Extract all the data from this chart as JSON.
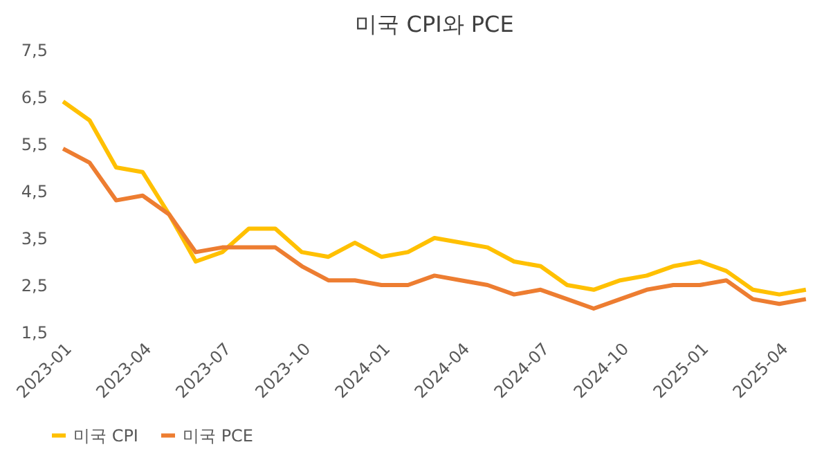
{
  "chart_data": {
    "type": "line",
    "title": "미국 CPI와 PCE",
    "categories": [
      "2023-01",
      null,
      null,
      "2023-04",
      null,
      null,
      "2023-07",
      null,
      null,
      "2023-10",
      null,
      null,
      "2024-01",
      null,
      null,
      "2024-04",
      null,
      null,
      "2024-07",
      null,
      null,
      "2024-10",
      null,
      null,
      "2025-01",
      null,
      null,
      "2025-04",
      null
    ],
    "series": [
      {
        "name": "미국 CPI",
        "color": "#ffc000",
        "values": [
          6.4,
          6.0,
          5.0,
          4.9,
          4.0,
          3.0,
          3.2,
          3.7,
          3.7,
          3.2,
          3.1,
          3.4,
          3.1,
          3.2,
          3.5,
          3.4,
          3.3,
          3.0,
          2.9,
          2.5,
          2.4,
          2.6,
          2.7,
          2.9,
          3.0,
          2.8,
          2.4,
          2.3,
          2.4
        ]
      },
      {
        "name": "미국 PCE",
        "color": "#ed7d31",
        "values": [
          5.4,
          5.1,
          4.3,
          4.4,
          4.0,
          3.2,
          3.3,
          3.3,
          3.3,
          2.9,
          2.6,
          2.6,
          2.5,
          2.5,
          2.7,
          2.6,
          2.5,
          2.3,
          2.4,
          2.2,
          2.0,
          2.2,
          2.4,
          2.5,
          2.5,
          2.6,
          2.2,
          2.1,
          2.2
        ]
      }
    ],
    "ylim": [
      1.5,
      7.5
    ],
    "yticks": [
      {
        "value": 1.5,
        "label": "1,5"
      },
      {
        "value": 2.5,
        "label": "2,5"
      },
      {
        "value": 3.5,
        "label": "3,5"
      },
      {
        "value": 4.5,
        "label": "4,5"
      },
      {
        "value": 5.5,
        "label": "5,5"
      },
      {
        "value": 6.5,
        "label": "6,5"
      },
      {
        "value": 7.5,
        "label": "7,5"
      }
    ],
    "grid": false,
    "legend": "bottom",
    "marker": "none",
    "line_style": "solid"
  }
}
